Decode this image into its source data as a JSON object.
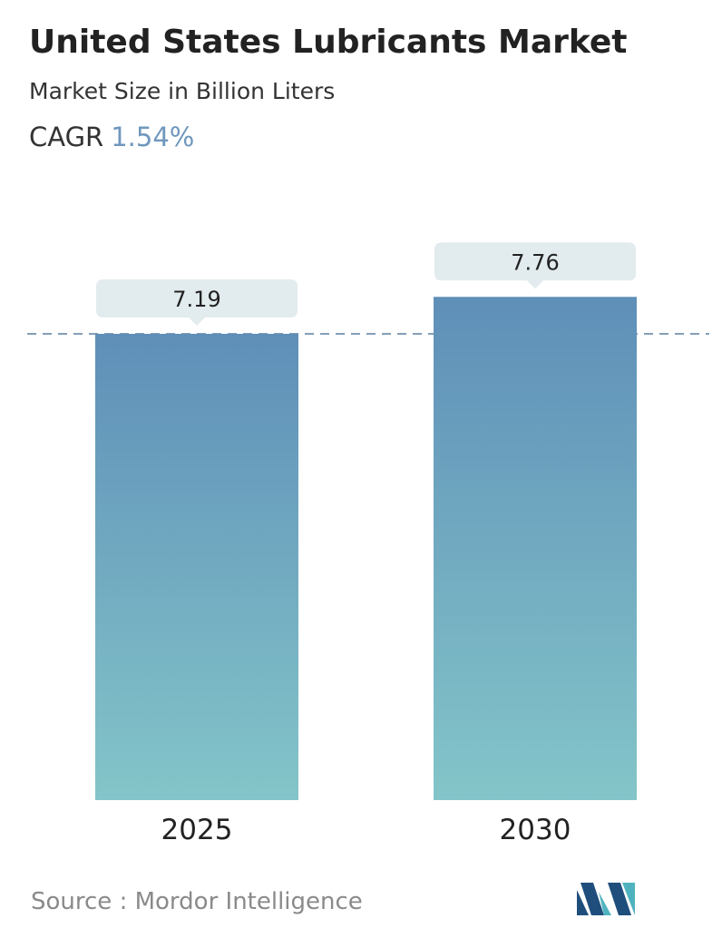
{
  "title": "United States Lubricants Market",
  "subtitle": "Market Size in Billion Liters",
  "cagr": {
    "label": "CAGR",
    "value": "1.54%"
  },
  "source": "Source :  Mordor Intelligence",
  "colors": {
    "bar_top": "#5f8fb8",
    "bar_bottom": "#83c5c9",
    "label_bg": "#e2ebee",
    "dash_line": "#5b7f9f",
    "cagr_value": "#6f97bd",
    "logo_dark": "#1f4e7d",
    "logo_light": "#4fb3bf"
  },
  "icons": {
    "brand_logo": "mordor-intelligence-logo-icon"
  },
  "chart_data": {
    "type": "bar",
    "categories": [
      "2025",
      "2030"
    ],
    "values": [
      7.19,
      7.76
    ],
    "value_labels": [
      "7.19",
      "7.76"
    ],
    "reference_line": {
      "value": 7.19,
      "style": "dashed"
    },
    "grid": false,
    "legend": "none"
  }
}
